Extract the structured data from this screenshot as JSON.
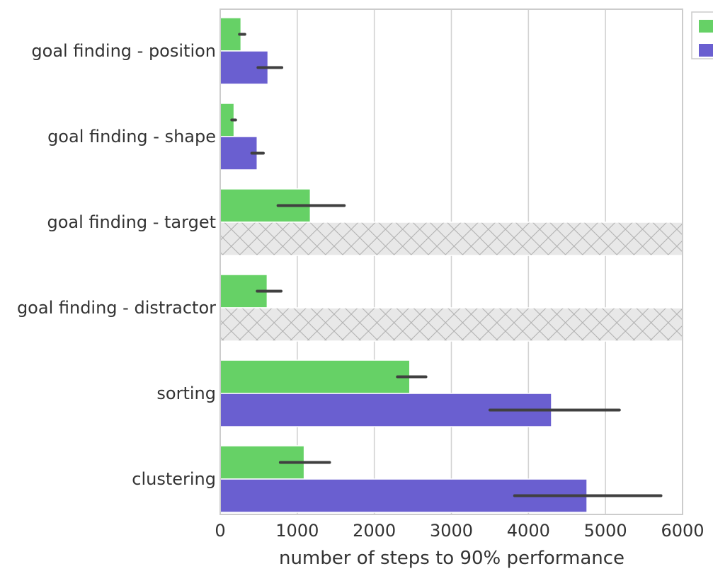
{
  "chart_data": {
    "type": "bar",
    "orientation": "horizontal",
    "title": "",
    "xlabel": "number of steps to 90% performance",
    "ylabel": "",
    "xlim": [
      0,
      6000
    ],
    "xticks": [
      0,
      1000,
      2000,
      3000,
      4000,
      5000,
      6000
    ],
    "grid": true,
    "legend_position": "top-right (cropped)",
    "categories": [
      "goal finding - position",
      "goal finding - shape",
      "goal finding - target",
      "goal finding - distractor",
      "sorting",
      "clustering"
    ],
    "series": [
      {
        "color": "#66d166",
        "values": [
          270,
          180,
          1170,
          610,
          2460,
          1090
        ],
        "error_low": [
          250,
          150,
          750,
          480,
          2300,
          780
        ],
        "error_high": [
          320,
          200,
          1610,
          790,
          2670,
          1420
        ]
      },
      {
        "color": "#6a5fd0",
        "values": [
          620,
          480,
          null,
          null,
          4300,
          4760
        ],
        "error_low": [
          490,
          410,
          null,
          null,
          3500,
          3820
        ],
        "error_high": [
          800,
          560,
          null,
          null,
          5180,
          5720
        ]
      }
    ],
    "missing_fill": {
      "color": "#e8e8e8",
      "pattern": "crosshatch"
    }
  }
}
